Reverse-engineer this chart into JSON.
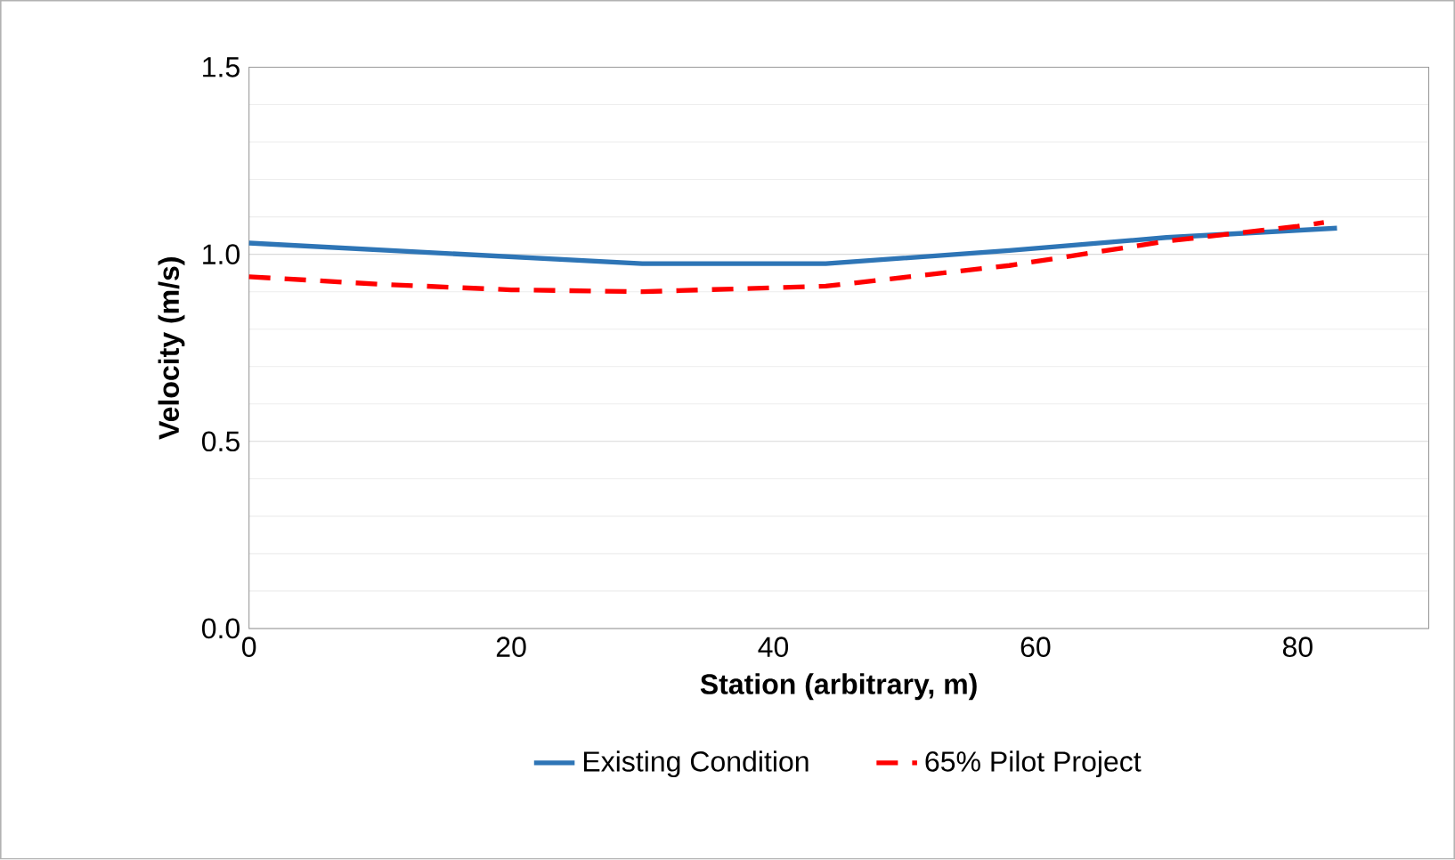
{
  "chart_data": {
    "type": "line",
    "xlabel": "Station (arbitrary, m)",
    "ylabel": "Velocity (m/s)",
    "xlim": [
      0,
      90
    ],
    "xticks": [
      0,
      20,
      40,
      60,
      80
    ],
    "ylim": [
      0,
      1.5
    ],
    "yticks": [
      {
        "value": 0,
        "label": "0.0"
      },
      {
        "value": 0.5,
        "label": "0.5"
      },
      {
        "value": 1,
        "label": "1.0"
      },
      {
        "value": 1.5,
        "label": "1.5"
      }
    ],
    "grid": "y",
    "legend": "bottom",
    "marker": "none",
    "series": [
      {
        "name": "Existing Condition",
        "color": "#2e75b6",
        "line_style": "solid",
        "x": [
          0,
          30,
          44,
          58,
          70,
          83
        ],
        "values": [
          1.03,
          0.975,
          0.975,
          1.01,
          1.045,
          1.07
        ]
      },
      {
        "name": "65% Pilot Project",
        "color": "#ff0000",
        "line_style": "dashed",
        "x": [
          0,
          10,
          20,
          30,
          44,
          58,
          70,
          80,
          82
        ],
        "values": [
          0.94,
          0.92,
          0.905,
          0.9,
          0.915,
          0.97,
          1.035,
          1.075,
          1.085
        ]
      }
    ]
  }
}
